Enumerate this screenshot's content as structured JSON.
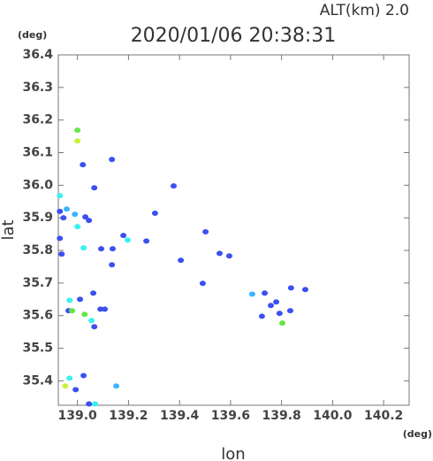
{
  "chart_data": {
    "type": "scatter",
    "title": "2020/01/06 20:38:31",
    "subtitle": "ALT(km)  2.0",
    "y_unit": "(deg)",
    "x_unit": "(deg)",
    "x_label": "lon",
    "y_label": "lat",
    "xlim": [
      138.925,
      140.3
    ],
    "ylim": [
      35.325,
      36.4
    ],
    "xticks": [
      {
        "value": 139.0,
        "label": "139.0"
      },
      139.2,
      139.4,
      139.6,
      139.8,
      {
        "value": 140.0,
        "label": "140.0"
      },
      140.2
    ],
    "yticks": [
      35.4,
      35.5,
      35.6,
      35.7,
      35.8,
      35.9,
      {
        "value": 36.0,
        "label": "36.0"
      },
      36.1,
      36.2,
      36.3,
      36.4
    ],
    "x": [
      139.0,
      139.0,
      139.021,
      139.066,
      139.135,
      139.377,
      138.931,
      138.931,
      138.958,
      138.99,
      138.945,
      139.031,
      139.0,
      139.045,
      138.931,
      138.938,
      139.024,
      139.093,
      139.304,
      139.18,
      139.197,
      139.27,
      139.138,
      139.135,
      139.405,
      139.502,
      139.557,
      139.595,
      139.491,
      139.685,
      139.734,
      139.779,
      139.758,
      139.837,
      139.893,
      139.792,
      139.803,
      138.969,
      138.965,
      138.979,
      139.01,
      139.028,
      139.055,
      139.062,
      139.107,
      139.066,
      139.09,
      139.024,
      138.969,
      138.952,
      138.993,
      139.152,
      139.069,
      139.045,
      139.723,
      139.834
    ],
    "y": [
      36.169,
      36.136,
      36.063,
      35.992,
      36.079,
      35.998,
      35.968,
      35.92,
      35.927,
      35.911,
      35.9,
      35.903,
      35.873,
      35.892,
      35.837,
      35.789,
      35.808,
      35.805,
      35.914,
      35.846,
      35.832,
      35.829,
      35.805,
      35.756,
      35.77,
      35.857,
      35.791,
      35.783,
      35.699,
      35.666,
      35.669,
      35.642,
      35.631,
      35.685,
      35.68,
      35.607,
      35.577,
      35.647,
      35.615,
      35.615,
      35.65,
      35.604,
      35.585,
      35.669,
      35.62,
      35.566,
      35.62,
      35.416,
      35.408,
      35.384,
      35.373,
      35.384,
      35.329,
      35.329,
      35.598,
      35.615
    ],
    "colors": [
      "#64e646",
      "#c8f03c",
      "#3c50f0",
      "#3c50f0",
      "#3c50f0",
      "#3c50f0",
      "#3cf0f0",
      "#3c50f0",
      "#3cb4ff",
      "#3cb4ff",
      "#3c50f0",
      "#3c50f0",
      "#3cf0f0",
      "#3c50f0",
      "#3c50f0",
      "#3c50f0",
      "#3cf0f0",
      "#3c50f0",
      "#3c50f0",
      "#3c50f0",
      "#3cf0f0",
      "#3c50f0",
      "#3c50f0",
      "#3c50f0",
      "#3c50f0",
      "#3c50f0",
      "#3c50f0",
      "#3c50f0",
      "#3c50f0",
      "#3cb4ff",
      "#3c50f0",
      "#3c50f0",
      "#3c50f0",
      "#3c50f0",
      "#3c50f0",
      "#3c50f0",
      "#64e646",
      "#3cf0f0",
      "#3c50f0",
      "#64e646",
      "#3c50f0",
      "#64e646",
      "#3cf0f0",
      "#3c50f0",
      "#3c50f0",
      "#3c50f0",
      "#3c50f0",
      "#3c50f0",
      "#3cf0f0",
      "#c8f03c",
      "#3c50f0",
      "#3cb4ff",
      "#3cf0f0",
      "#3c50f0",
      "#3c50f0",
      "#3c50f0"
    ]
  }
}
